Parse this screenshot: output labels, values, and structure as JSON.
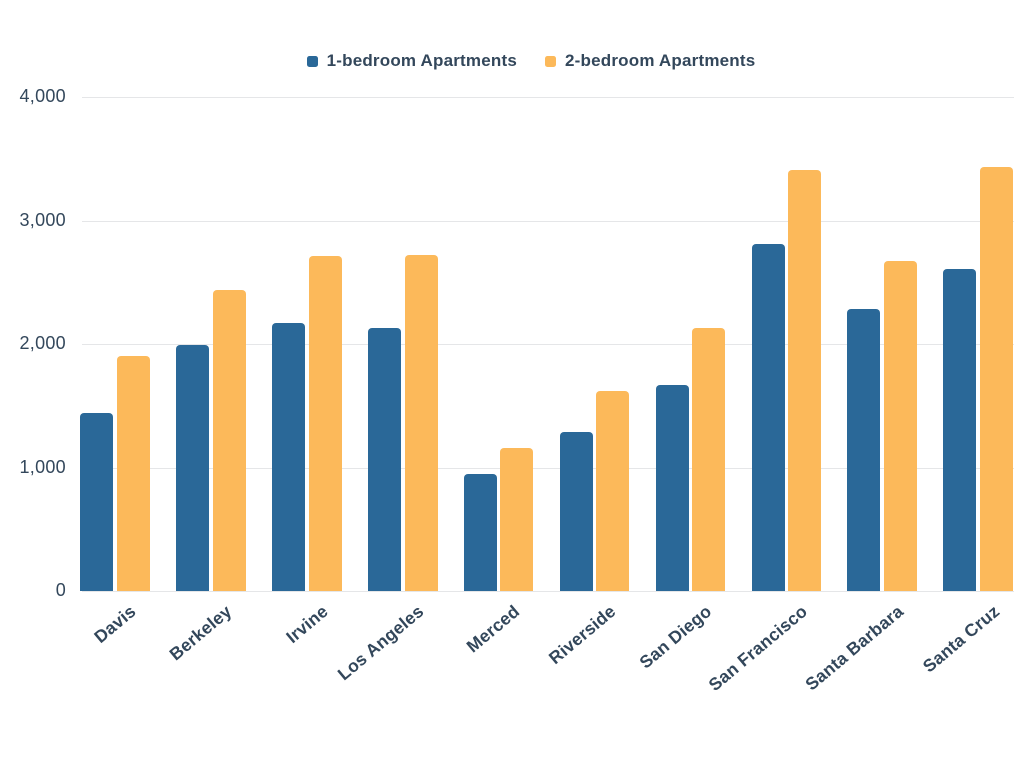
{
  "chart_data": {
    "type": "bar",
    "categories": [
      "Davis",
      "Berkeley",
      "Irvine",
      "Los Angeles",
      "Merced",
      "Riverside",
      "San Diego",
      "San Francisco",
      "Santa Barbara",
      "Santa Cruz"
    ],
    "series": [
      {
        "name": "1-bedroom Apartments",
        "color": "#2a6898",
        "values": [
          1440,
          1990,
          2170,
          2130,
          950,
          1290,
          1670,
          2810,
          2280,
          2610
        ]
      },
      {
        "name": "2-bedroom Apartments",
        "color": "#fcb95a",
        "values": [
          1900,
          2440,
          2710,
          2720,
          1160,
          1620,
          2130,
          3410,
          2670,
          3430
        ]
      }
    ],
    "ylim": [
      0,
      4000
    ],
    "yticks": [
      0,
      1000,
      2000,
      3000,
      4000
    ],
    "ytick_labels": [
      "0",
      "1,000",
      "2,000",
      "3,000",
      "4,000"
    ],
    "grid": "horizontal",
    "legend_position": "top",
    "x_label_rotation_deg": -40
  },
  "colors": {
    "text": "#33475b",
    "gridline": "#e5e6e8",
    "background": "#ffffff",
    "series_1": "#2a6898",
    "series_2": "#fcb95a"
  }
}
